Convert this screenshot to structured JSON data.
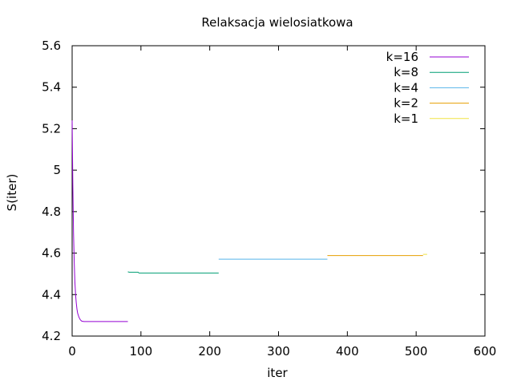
{
  "chart_data": {
    "type": "line",
    "title": "Relaksacja wielosiatkowa",
    "xlabel": "iter",
    "ylabel": "S(iter)",
    "xlim": [
      0,
      600
    ],
    "ylim": [
      4.2,
      5.6
    ],
    "xticks": [
      0,
      100,
      200,
      300,
      400,
      500,
      600
    ],
    "yticks": [
      4.2,
      4.4,
      4.6,
      4.8,
      5,
      5.2,
      5.4,
      5.6
    ],
    "xtick_labels": [
      "0",
      "100",
      "200",
      "300",
      "400",
      "500",
      "600"
    ],
    "ytick_labels": [
      "4.2",
      "4.4",
      "4.6",
      "4.8",
      "5",
      "5.2",
      "5.4",
      "5.6"
    ],
    "grid": false,
    "legend_position": "top-right",
    "series": [
      {
        "name": "k=16",
        "color": "#9400d3",
        "x": [
          0,
          1,
          2,
          3,
          4,
          5,
          6,
          7,
          8,
          9,
          10,
          12,
          14,
          17,
          20,
          30,
          50,
          81
        ],
        "y": [
          5.24,
          4.93,
          4.7,
          4.56,
          4.46,
          4.4,
          4.36,
          4.33,
          4.31,
          4.3,
          4.29,
          4.278,
          4.272,
          4.27,
          4.27,
          4.27,
          4.27,
          4.27
        ]
      },
      {
        "name": "k=8",
        "color": "#009e73",
        "x": [
          81,
          83,
          96,
          97,
          150,
          213
        ],
        "y": [
          4.51,
          4.508,
          4.508,
          4.504,
          4.504,
          4.504
        ]
      },
      {
        "name": "k=4",
        "color": "#56b4e9",
        "x": [
          213,
          214,
          300,
          371
        ],
        "y": [
          4.571,
          4.571,
          4.571,
          4.571
        ]
      },
      {
        "name": "k=2",
        "color": "#e69f00",
        "x": [
          371,
          372,
          450,
          510
        ],
        "y": [
          4.588,
          4.588,
          4.588,
          4.588
        ]
      },
      {
        "name": "k=1",
        "color": "#f0e442",
        "x": [
          510,
          512,
          516
        ],
        "y": [
          4.594,
          4.594,
          4.594
        ]
      }
    ]
  }
}
